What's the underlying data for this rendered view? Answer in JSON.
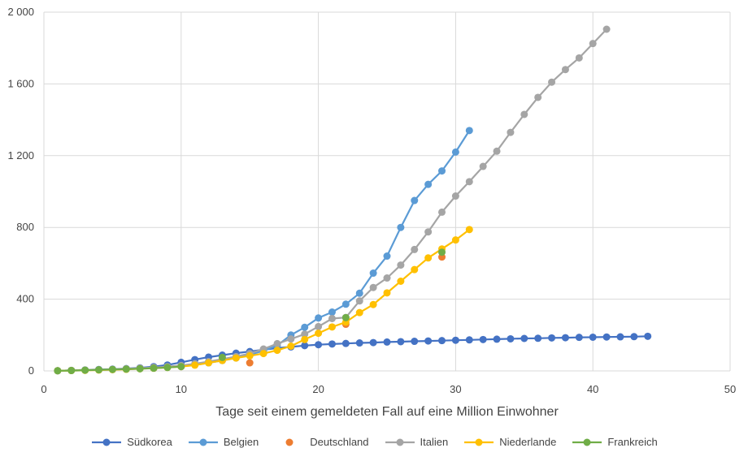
{
  "chart_data": {
    "type": "line",
    "title": "",
    "xlabel": "Tage seit einem gemeldeten Fall auf eine Million Einwohner",
    "ylabel": "",
    "xlim": [
      0,
      50
    ],
    "ylim": [
      0,
      2000
    ],
    "x_ticks": [
      0,
      10,
      20,
      30,
      40,
      50
    ],
    "y_ticks": [
      0,
      400,
      800,
      1200,
      1600,
      2000
    ],
    "x_tick_labels": [
      "0",
      "10",
      "20",
      "30",
      "40",
      "50"
    ],
    "y_tick_labels": [
      "0",
      "400",
      "800",
      "1 200",
      "1 600",
      "2 000"
    ],
    "grid": "vertical and horizontal",
    "legend_position": "bottom",
    "series": [
      {
        "name": "Südkorea",
        "color": "#4472c4",
        "line": true,
        "x": [
          1,
          2,
          3,
          4,
          5,
          6,
          7,
          8,
          9,
          10,
          11,
          12,
          13,
          14,
          15,
          16,
          17,
          18,
          19,
          20,
          21,
          22,
          23,
          24,
          25,
          26,
          27,
          28,
          29,
          30,
          31,
          32,
          33,
          34,
          35,
          36,
          37,
          38,
          39,
          40,
          41,
          42,
          43,
          44
        ],
        "y": [
          1,
          3,
          5,
          8,
          10,
          13,
          17,
          24,
          33,
          48,
          63,
          77,
          88,
          99,
          108,
          118,
          127,
          134,
          141,
          146,
          150,
          153,
          156,
          158,
          161,
          163,
          165,
          167,
          169,
          171,
          173,
          175,
          177,
          179,
          181,
          182,
          184,
          185,
          187,
          188,
          189,
          190,
          191,
          193
        ]
      },
      {
        "name": "Belgien",
        "color": "#5b9bd5",
        "line": true,
        "x": [
          1,
          2,
          3,
          4,
          5,
          6,
          7,
          8,
          9,
          10,
          11,
          12,
          13,
          14,
          15,
          16,
          17,
          18,
          19,
          20,
          21,
          22,
          23,
          24,
          25,
          26,
          27,
          28,
          29,
          30,
          31
        ],
        "y": [
          1,
          3,
          5,
          7,
          9,
          11,
          14,
          17,
          21,
          26,
          34,
          45,
          58,
          72,
          90,
          112,
          142,
          200,
          243,
          295,
          328,
          372,
          433,
          545,
          640,
          800,
          950,
          1040,
          1115,
          1220,
          1340
        ]
      },
      {
        "name": "Deutschland",
        "color": "#ed7d31",
        "line": false,
        "x": [
          8,
          15,
          22,
          29
        ],
        "y": [
          15,
          45,
          260,
          635
        ]
      },
      {
        "name": "Italien",
        "color": "#a5a5a5",
        "line": true,
        "x": [
          1,
          2,
          3,
          4,
          5,
          6,
          7,
          8,
          9,
          10,
          11,
          12,
          13,
          14,
          15,
          16,
          17,
          18,
          19,
          20,
          21,
          22,
          23,
          24,
          25,
          26,
          27,
          28,
          29,
          30,
          31,
          32,
          33,
          34,
          35,
          36,
          37,
          38,
          39,
          40,
          41
        ],
        "y": [
          1,
          3,
          5,
          7,
          9,
          12,
          15,
          19,
          24,
          30,
          40,
          52,
          66,
          80,
          97,
          122,
          152,
          178,
          205,
          247,
          292,
          298,
          390,
          465,
          518,
          590,
          677,
          775,
          885,
          975,
          1055,
          1140,
          1225,
          1330,
          1430,
          1525,
          1610,
          1680,
          1745,
          1825,
          1905
        ]
      },
      {
        "name": "Niederlande",
        "color": "#ffc000",
        "line": true,
        "x": [
          1,
          2,
          3,
          4,
          5,
          6,
          7,
          8,
          9,
          10,
          11,
          12,
          13,
          14,
          15,
          16,
          17,
          18,
          19,
          20,
          21,
          22,
          23,
          24,
          25,
          26,
          27,
          28,
          29,
          30,
          31
        ],
        "y": [
          1,
          2,
          3,
          5,
          7,
          9,
          12,
          15,
          19,
          24,
          32,
          45,
          58,
          72,
          84,
          97,
          115,
          138,
          175,
          210,
          245,
          272,
          325,
          370,
          435,
          500,
          565,
          630,
          680,
          730,
          788
        ]
      },
      {
        "name": "Frankreich",
        "color": "#70ad47",
        "line": true,
        "x": [
          1,
          2,
          3,
          4,
          5,
          6,
          7,
          8,
          9,
          10
        ],
        "y": [
          1,
          2,
          4,
          6,
          8,
          10,
          12,
          15,
          19,
          24
        ],
        "extra_points_x": [
          13,
          22,
          29
        ],
        "extra_points_y": [
          75,
          297,
          662
        ]
      }
    ]
  }
}
